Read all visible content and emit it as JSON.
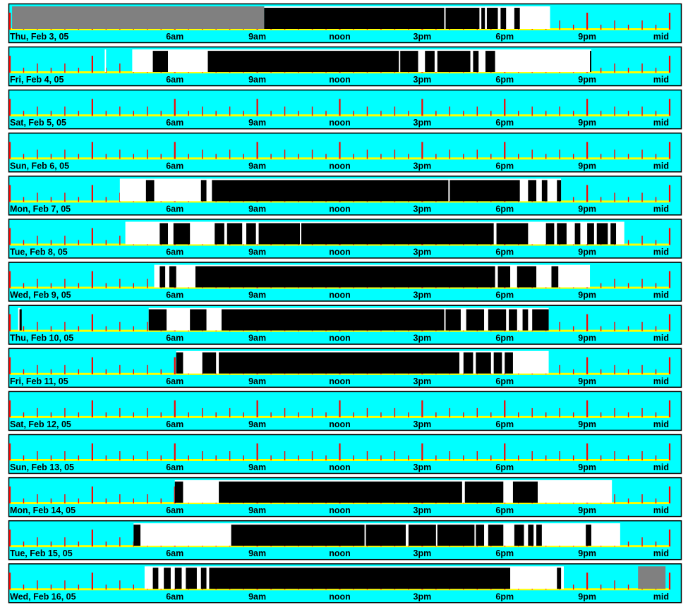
{
  "chart_data": {
    "type": "timeline",
    "time_unit": "hours since midnight",
    "x_range": [
      0,
      24
    ],
    "tick_labels": [
      {
        "hour": 6,
        "label": "6am"
      },
      {
        "hour": 9,
        "label": "9am"
      },
      {
        "hour": 12,
        "label": "noon"
      },
      {
        "hour": 15,
        "label": "3pm"
      },
      {
        "hour": 18,
        "label": "6pm"
      },
      {
        "hour": 21,
        "label": "9pm"
      },
      {
        "hour": 24,
        "label": "mid"
      }
    ],
    "colors": {
      "background": "#00ffff",
      "base_line": "#ffff00",
      "tick": "#ff0000",
      "white_period": "#ffffff",
      "black_period": "#000000",
      "gray_period": "#808080",
      "frame": "#000000"
    },
    "days": [
      {
        "label": "Thu, Feb 3, 05",
        "white": [
          [
            9.25,
            19.65
          ]
        ],
        "gray": [
          [
            0.08,
            9.25
          ]
        ],
        "black": [
          [
            9.25,
            15.8
          ],
          [
            15.85,
            17.08
          ],
          [
            17.15,
            17.28
          ],
          [
            17.35,
            17.75
          ],
          [
            17.85,
            18.05
          ],
          [
            18.35,
            18.55
          ]
        ]
      },
      {
        "label": "Fri, Feb 4, 05",
        "white": [
          [
            3.45,
            3.5
          ],
          [
            4.45,
            21.15
          ]
        ],
        "gray": [],
        "black": [
          [
            5.2,
            5.75
          ],
          [
            7.2,
            14.15
          ],
          [
            14.2,
            14.85
          ],
          [
            15.1,
            15.45
          ],
          [
            15.55,
            16.75
          ],
          [
            16.85,
            17.05
          ],
          [
            17.3,
            17.65
          ],
          [
            21.1,
            21.15
          ]
        ]
      },
      {
        "label": "Sat, Feb 5, 05",
        "white": [],
        "gray": [],
        "black": []
      },
      {
        "label": "Sun, Feb 6, 05",
        "white": [],
        "gray": [],
        "black": []
      },
      {
        "label": "Mon, Feb 7, 05",
        "white": [
          [
            4.0,
            20.05
          ]
        ],
        "gray": [],
        "black": [
          [
            4.95,
            5.25
          ],
          [
            6.95,
            7.15
          ],
          [
            7.35,
            15.95
          ],
          [
            16.0,
            18.55
          ],
          [
            18.85,
            19.15
          ],
          [
            19.35,
            19.55
          ],
          [
            19.9,
            20.05
          ]
        ]
      },
      {
        "label": "Tue, Feb 8, 05",
        "white": [
          [
            4.2,
            22.35
          ]
        ],
        "gray": [],
        "black": [
          [
            5.45,
            5.75
          ],
          [
            5.95,
            6.55
          ],
          [
            7.45,
            7.8
          ],
          [
            7.9,
            8.45
          ],
          [
            8.6,
            8.95
          ],
          [
            9.05,
            10.55
          ],
          [
            10.6,
            17.6
          ],
          [
            17.7,
            18.85
          ],
          [
            19.5,
            19.8
          ],
          [
            19.9,
            20.25
          ],
          [
            20.55,
            20.75
          ],
          [
            21.0,
            21.25
          ],
          [
            21.35,
            21.75
          ],
          [
            21.85,
            22.05
          ]
        ]
      },
      {
        "label": "Wed, Feb 9, 05",
        "white": [
          [
            5.25,
            21.1
          ]
        ],
        "gray": [],
        "black": [
          [
            5.45,
            5.65
          ],
          [
            5.8,
            6.05
          ],
          [
            6.75,
            17.65
          ],
          [
            17.75,
            18.2
          ],
          [
            18.45,
            19.15
          ],
          [
            19.7,
            19.95
          ]
        ]
      },
      {
        "label": "Thu, Feb 10, 05",
        "white": [
          [
            0.3,
            0.38
          ],
          [
            5.05,
            19.6
          ]
        ],
        "gray": [],
        "black": [
          [
            0.35,
            0.43
          ],
          [
            5.05,
            5.7
          ],
          [
            6.55,
            7.15
          ],
          [
            7.7,
            15.8
          ],
          [
            15.85,
            16.4
          ],
          [
            16.6,
            17.25
          ],
          [
            17.4,
            18.05
          ],
          [
            18.15,
            18.45
          ],
          [
            18.65,
            18.85
          ],
          [
            19.0,
            19.6
          ]
        ]
      },
      {
        "label": "Fri, Feb 11, 05",
        "white": [
          [
            6.05,
            19.6
          ]
        ],
        "gray": [],
        "black": [
          [
            6.05,
            6.3
          ],
          [
            7.0,
            7.5
          ],
          [
            7.6,
            16.35
          ],
          [
            16.5,
            16.85
          ],
          [
            16.95,
            17.5
          ],
          [
            17.6,
            17.9
          ],
          [
            18.0,
            18.3
          ]
        ]
      },
      {
        "label": "Sat, Feb 12, 05",
        "white": [],
        "gray": [],
        "black": []
      },
      {
        "label": "Sun, Feb 13, 05",
        "white": [],
        "gray": [],
        "black": []
      },
      {
        "label": "Mon, Feb 14, 05",
        "white": [
          [
            6.0,
            21.9
          ]
        ],
        "gray": [],
        "black": [
          [
            6.0,
            6.3
          ],
          [
            7.6,
            16.45
          ],
          [
            16.55,
            17.95
          ],
          [
            18.3,
            19.2
          ]
        ]
      },
      {
        "label": "Tue, Feb 15, 05",
        "white": [
          [
            4.5,
            22.2
          ]
        ],
        "gray": [],
        "black": [
          [
            4.5,
            4.75
          ],
          [
            8.05,
            12.9
          ],
          [
            12.95,
            14.4
          ],
          [
            14.5,
            15.5
          ],
          [
            15.55,
            16.9
          ],
          [
            16.95,
            17.25
          ],
          [
            17.4,
            17.95
          ],
          [
            18.35,
            18.7
          ],
          [
            18.85,
            19.05
          ],
          [
            19.15,
            19.35
          ],
          [
            20.95,
            21.15
          ]
        ]
      },
      {
        "label": "Wed, Feb 16, 05",
        "white": [
          [
            4.9,
            20.15
          ]
        ],
        "gray": [
          [
            22.85,
            23.85
          ]
        ],
        "black": [
          [
            5.2,
            5.4
          ],
          [
            5.6,
            5.85
          ],
          [
            6.0,
            6.25
          ],
          [
            6.4,
            6.8
          ],
          [
            6.95,
            7.15
          ],
          [
            7.25,
            18.2
          ],
          [
            19.9,
            20.05
          ]
        ]
      }
    ]
  }
}
